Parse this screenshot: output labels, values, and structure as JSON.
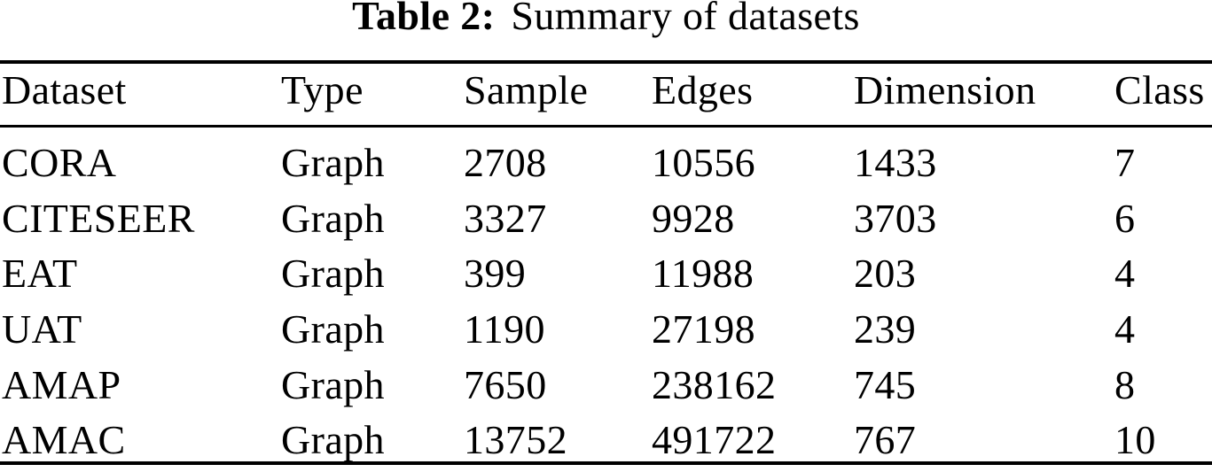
{
  "caption": {
    "label": "Table 2:",
    "text": "Summary of datasets"
  },
  "table": {
    "columns": [
      "Dataset",
      "Type",
      "Sample",
      "Edges",
      "Dimension",
      "Class"
    ],
    "rows": [
      [
        "CORA",
        "Graph",
        "2708",
        "10556",
        "1433",
        "7"
      ],
      [
        "CITESEER",
        "Graph",
        "3327",
        "9928",
        "3703",
        "6"
      ],
      [
        "EAT",
        "Graph",
        "399",
        "11988",
        "203",
        "4"
      ],
      [
        "UAT",
        "Graph",
        "1190",
        "27198",
        "239",
        "4"
      ],
      [
        "AMAP",
        "Graph",
        "7650",
        "238162",
        "745",
        "8"
      ],
      [
        "AMAC",
        "Graph",
        "13752",
        "491722",
        "767",
        "10"
      ]
    ]
  },
  "colors": {
    "text": "#000000",
    "rule": "#000000",
    "background": "#ffffff"
  }
}
